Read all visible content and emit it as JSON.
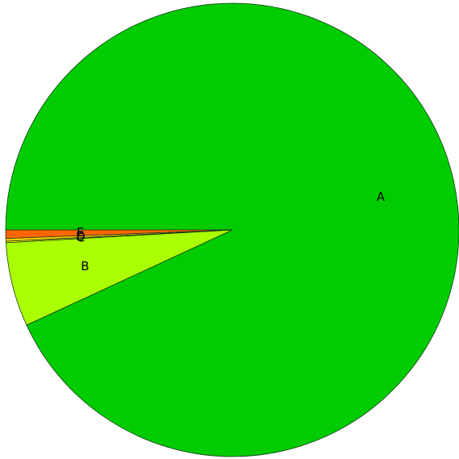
{
  "chart_data": {
    "type": "pie",
    "categories": [
      "A",
      "B",
      "C",
      "D",
      "E"
    ],
    "values": [
      93.1,
      6.0,
      0.1,
      0.2,
      0.6
    ],
    "colors": [
      "#00cc00",
      "#aaff00",
      "#ffff00",
      "#ffcc00",
      "#ff6600"
    ]
  }
}
